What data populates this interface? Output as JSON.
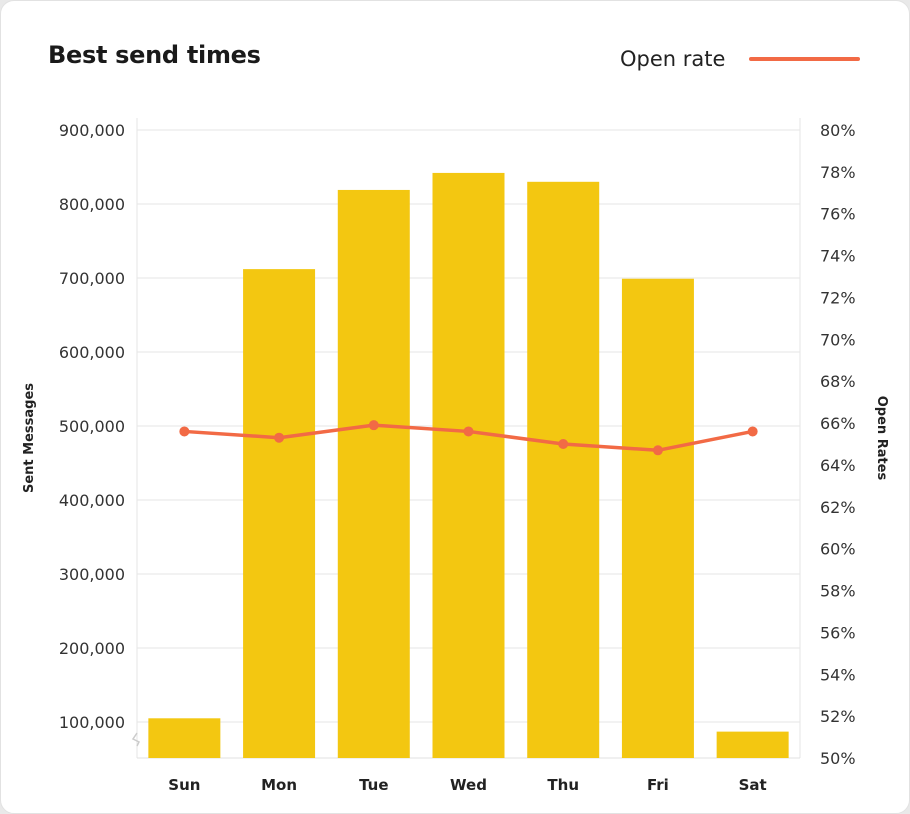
{
  "chart_data": {
    "type": "bar+line",
    "title": "Best send times",
    "categories": [
      "Sun",
      "Mon",
      "Tue",
      "Wed",
      "Thu",
      "Fri",
      "Sat"
    ],
    "series": [
      {
        "axis": "left",
        "kind": "bar",
        "values": [
          105000,
          712000,
          819000,
          842000,
          830000,
          699000,
          87000
        ],
        "color": "#f3c711"
      },
      {
        "name": "Open rate",
        "axis": "right",
        "kind": "line",
        "values": [
          65.6,
          65.3,
          65.9,
          65.6,
          65.0,
          64.7,
          65.6
        ],
        "color": "#f26a45"
      }
    ],
    "ylabel_left": "Sent Messages",
    "ylabel_right": "Open Rates",
    "yticks_left": [
      "100,000",
      "200,000",
      "300,000",
      "400,000",
      "500,000",
      "600,000",
      "700,000",
      "800,000",
      "900,000"
    ],
    "yticks_right": [
      "50%",
      "52%",
      "54%",
      "56%",
      "58%",
      "60%",
      "62%",
      "64%",
      "66%",
      "68%",
      "70%",
      "72%",
      "74%",
      "76%",
      "78%",
      "80%"
    ],
    "ylim_left": [
      100000,
      900000
    ],
    "ylim_right": [
      50,
      80
    ],
    "left_axis_break": true,
    "grid": true,
    "legend": "top-right"
  }
}
